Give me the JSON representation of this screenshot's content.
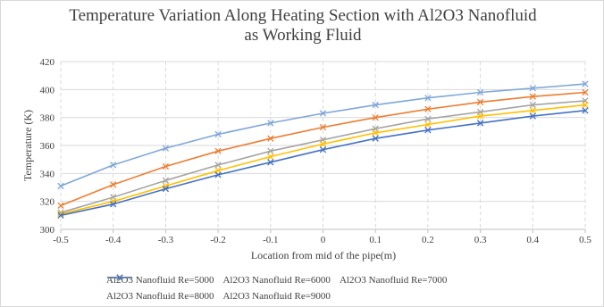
{
  "chart_data": {
    "type": "line",
    "title_lines": [
      "Temperature Variation Along Heating Section with Al2O3 Nanofluid",
      "as Working Fluid"
    ],
    "xlabel": "Location from mid of the pipe(m)",
    "ylabel": "Temperature (K)",
    "xlim": [
      -0.5,
      0.5
    ],
    "ylim": [
      300,
      420
    ],
    "x_ticks": [
      "-0.5",
      "-0.4",
      "-0.3",
      "-0.2",
      "-0.1",
      "0",
      "0.1",
      "0.2",
      "0.3",
      "0.4",
      "0.5"
    ],
    "y_ticks": [
      "300",
      "320",
      "340",
      "360",
      "380",
      "400",
      "420"
    ],
    "x_grid": "dashed vertical",
    "y_grid": "solid horizontal",
    "legend_position": "bottom",
    "x": [
      -0.5,
      -0.4,
      -0.3,
      -0.2,
      -0.1,
      0,
      0.1,
      0.2,
      0.3,
      0.4,
      0.5
    ],
    "series": [
      {
        "name": "Al2O3 Nanofluid Re=5000",
        "color": "#7fa7d9",
        "marker": "x-icon",
        "values": [
          331,
          346,
          358,
          368,
          376,
          383,
          389,
          394,
          398,
          401,
          404
        ]
      },
      {
        "name": "Al2O3 Nanofluid Re=6000",
        "color": "#ed7d31",
        "marker": "x-icon",
        "values": [
          317,
          332,
          345,
          356,
          365,
          373,
          380,
          386,
          391,
          395,
          398
        ]
      },
      {
        "name": "Al2O3 Nanofluid Re=7000",
        "color": "#a5a5a5",
        "marker": "x-icon",
        "values": [
          312,
          323,
          335,
          346,
          356,
          364,
          372,
          379,
          384,
          389,
          392
        ]
      },
      {
        "name": "Al2O3 Nanofluid Re=8000",
        "color": "#ffc000",
        "marker": "x-icon",
        "values": [
          311,
          320,
          331,
          342,
          352,
          361,
          369,
          375,
          381,
          385,
          389
        ]
      },
      {
        "name": "Al2O3 Nanofluid Re=9000",
        "color": "#4472c4",
        "marker": "x-icon",
        "values": [
          310,
          318,
          329,
          339,
          348,
          357,
          365,
          371,
          376,
          381,
          385
        ]
      }
    ]
  }
}
